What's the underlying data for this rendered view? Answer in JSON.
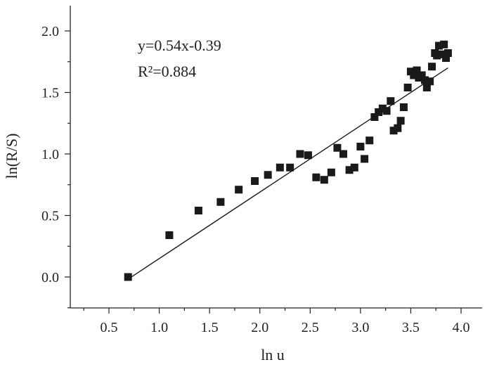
{
  "chart_data": {
    "type": "scatter",
    "title": "",
    "xlabel": "ln u",
    "ylabel": "ln(R/S)",
    "xlim": [
      0.3,
      4.2
    ],
    "ylim": [
      -0.25,
      2.25
    ],
    "xticks": [
      "0.5",
      "1.0",
      "1.5",
      "2.0",
      "2.5",
      "3.0",
      "3.5",
      "4.0"
    ],
    "yticks": [
      "0.0",
      "0.5",
      "1.0",
      "1.5",
      "2.0"
    ],
    "grid": false,
    "legend": "none",
    "annotations": {
      "equation": "y=0.54x-0.39",
      "r_squared": "R²=0.884"
    },
    "fit_line": {
      "slope": 0.54,
      "intercept": -0.39,
      "x_range": [
        0.69,
        3.87
      ]
    },
    "points": {
      "x": [
        0.69,
        1.1,
        1.39,
        1.61,
        1.79,
        1.95,
        2.08,
        2.2,
        2.3,
        2.4,
        2.48,
        2.56,
        2.64,
        2.71,
        2.77,
        2.83,
        2.89,
        2.94,
        3.0,
        3.04,
        3.09,
        3.14,
        3.18,
        3.22,
        3.26,
        3.3,
        3.33,
        3.37,
        3.4,
        3.43,
        3.47,
        3.5,
        3.53,
        3.56,
        3.58,
        3.61,
        3.64,
        3.66,
        3.69,
        3.71,
        3.74,
        3.76,
        3.78,
        3.81,
        3.83,
        3.85,
        3.87
      ],
      "y": [
        0.0,
        0.34,
        0.54,
        0.61,
        0.71,
        0.78,
        0.83,
        0.89,
        0.89,
        1.0,
        0.99,
        0.81,
        0.79,
        0.85,
        1.05,
        1.0,
        0.87,
        0.89,
        1.06,
        0.96,
        1.11,
        1.3,
        1.34,
        1.37,
        1.35,
        1.43,
        1.19,
        1.21,
        1.27,
        1.38,
        1.54,
        1.67,
        1.64,
        1.68,
        1.62,
        1.64,
        1.6,
        1.54,
        1.59,
        1.71,
        1.82,
        1.8,
        1.88,
        1.81,
        1.89,
        1.78,
        1.82
      ]
    },
    "colors": {
      "ink": "#1a1a1a"
    }
  }
}
